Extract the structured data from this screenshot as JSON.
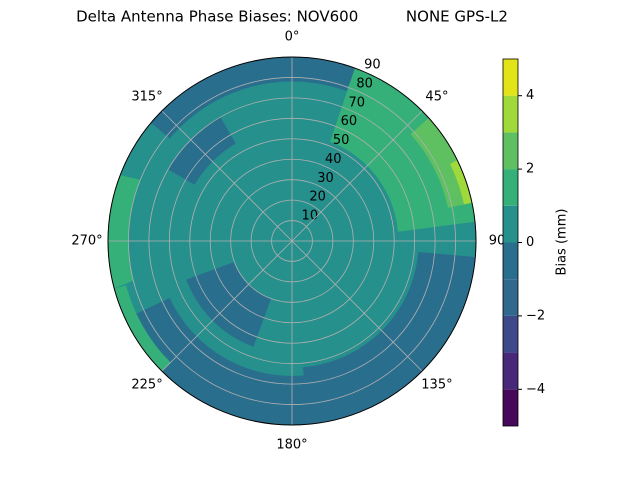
{
  "chart_data": {
    "type": "polar-contour",
    "title": "Delta Antenna Phase Biases: NOV600          NONE GPS-L2",
    "rlim": [
      0,
      90
    ],
    "rticks": [
      10,
      20,
      30,
      40,
      50,
      60,
      70,
      80,
      90
    ],
    "theta_ticks": [
      {
        "value": 0,
        "label": "0°"
      },
      {
        "value": 45,
        "label": "45°"
      },
      90,
      {
        "value": 135,
        "label": "135°"
      },
      {
        "value": 180,
        "label": "180°"
      },
      {
        "value": 225,
        "label": "225°"
      },
      {
        "value": 270,
        "label": "270°"
      },
      {
        "value": 315,
        "label": "315°"
      }
    ],
    "grid": true,
    "colorbar": {
      "label": "Bias (mm)",
      "lim": [
        -5,
        5
      ],
      "levels": [
        -5,
        -4,
        -3,
        -2,
        -1,
        0,
        1,
        2,
        3,
        4,
        5
      ],
      "ticks": [
        {
          "value": -4,
          "label": "−4"
        },
        {
          "value": -2,
          "label": "−2"
        },
        0,
        2,
        4
      ],
      "colors": [
        "#45085a",
        "#482878",
        "#3e4989",
        "#31688e",
        "#2a6e8e",
        "#26908c",
        "#35b079",
        "#5ec060",
        "#a0d93a",
        "#e3e418"
      ]
    }
  }
}
